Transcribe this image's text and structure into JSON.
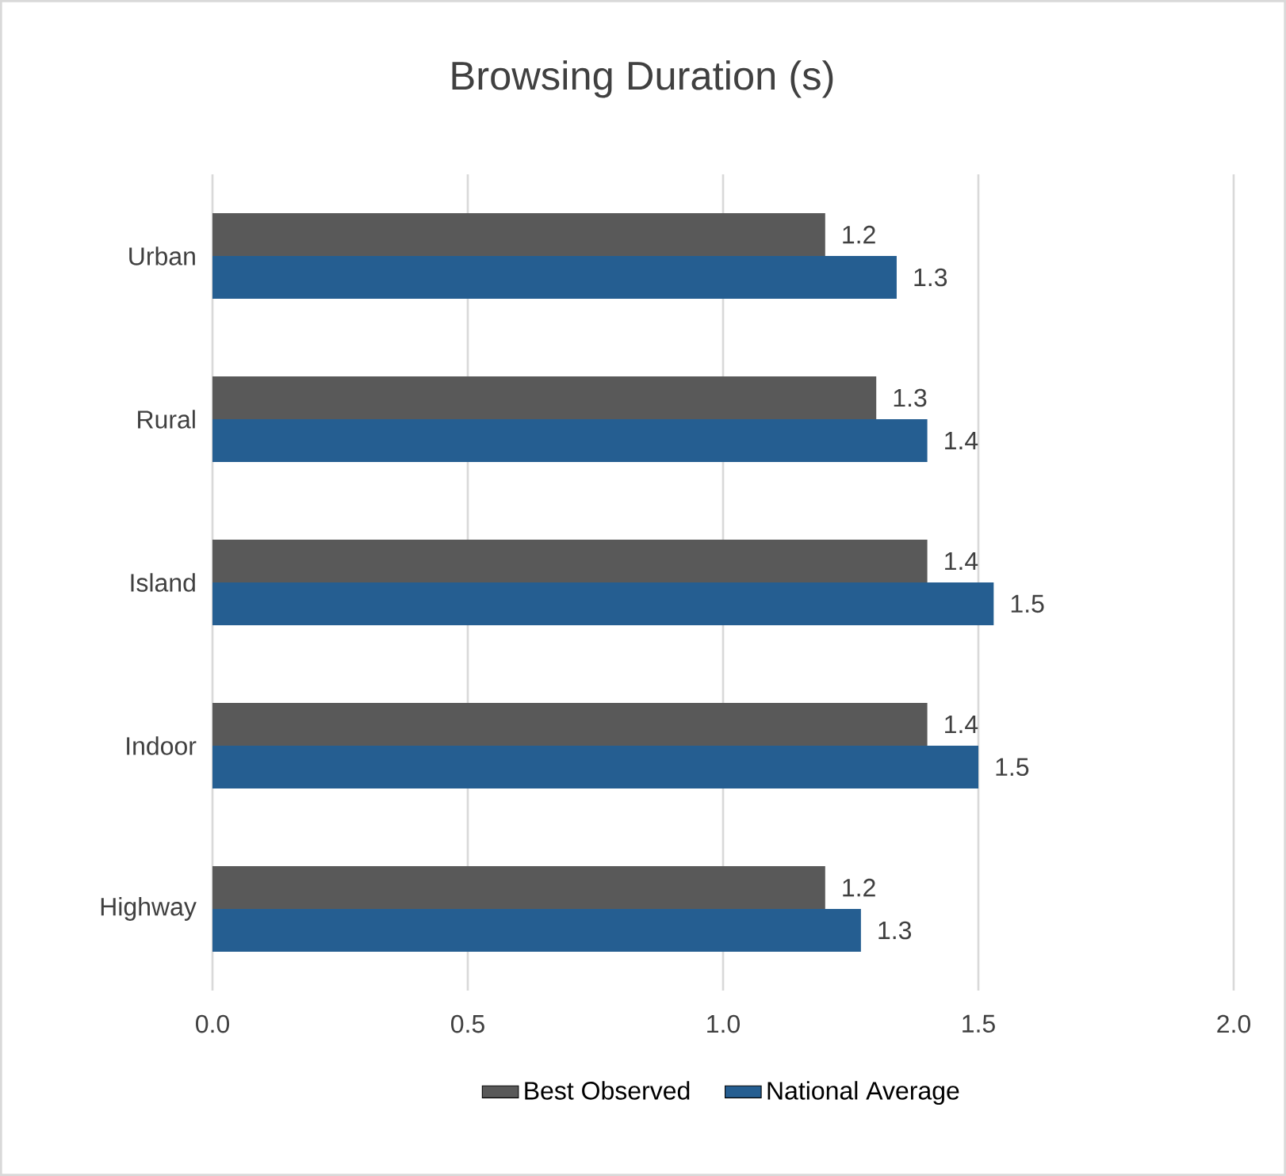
{
  "chart_data": {
    "type": "bar",
    "orientation": "horizontal",
    "title": "Browsing Duration (s)",
    "categories": [
      "Urban",
      "Rural",
      "Island",
      "Indoor",
      "Highway"
    ],
    "series": [
      {
        "name": "Best Observed",
        "color": "#595959",
        "values": [
          1.2,
          1.3,
          1.4,
          1.4,
          1.2
        ],
        "value_labels": [
          "1.2",
          "1.3",
          "1.4",
          "1.4",
          "1.2"
        ]
      },
      {
        "name": "National Average",
        "color": "#255e91",
        "values": [
          1.34,
          1.4,
          1.53,
          1.5,
          1.27
        ],
        "value_labels": [
          "1.3",
          "1.4",
          "1.5",
          "1.5",
          "1.3"
        ]
      }
    ],
    "xlim": [
      0,
      2
    ],
    "xticks": [
      {
        "value": 0,
        "label": "0.0"
      },
      0.5,
      {
        "value": 1,
        "label": "1.0"
      },
      1.5,
      {
        "value": 2,
        "label": "2.0"
      }
    ],
    "grid": "x",
    "legend": "bottom"
  }
}
